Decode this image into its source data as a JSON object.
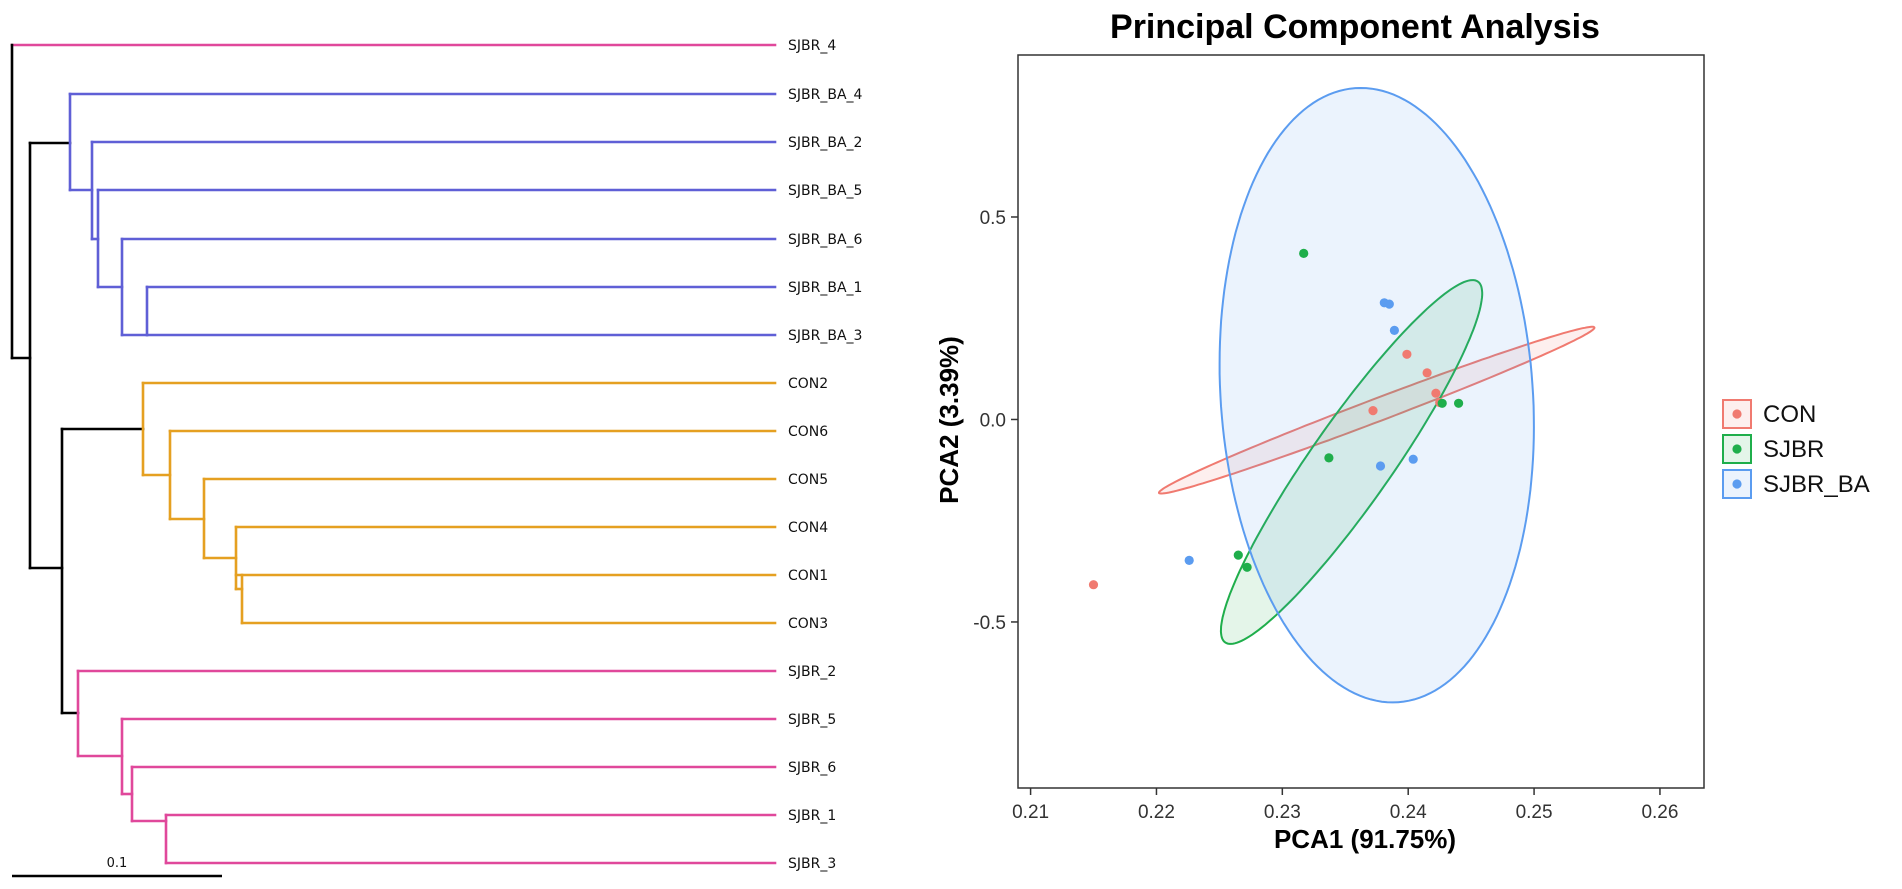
{
  "chart_data": [
    {
      "type": "dendrogram",
      "scale_label": "0.1",
      "colors": {
        "SJBR": "#e0489b",
        "SJBR_BA": "#5f5fd6",
        "CON": "#e5a021",
        "root": "#000000"
      },
      "leaves": [
        {
          "name": "SJBR_4",
          "group": "SJBR"
        },
        {
          "name": "SJBR_BA_4",
          "group": "SJBR_BA"
        },
        {
          "name": "SJBR_BA_2",
          "group": "SJBR_BA"
        },
        {
          "name": "SJBR_BA_5",
          "group": "SJBR_BA"
        },
        {
          "name": "SJBR_BA_6",
          "group": "SJBR_BA"
        },
        {
          "name": "SJBR_BA_1",
          "group": "SJBR_BA"
        },
        {
          "name": "SJBR_BA_3",
          "group": "SJBR_BA"
        },
        {
          "name": "CON2",
          "group": "CON"
        },
        {
          "name": "CON6",
          "group": "CON"
        },
        {
          "name": "CON5",
          "group": "CON"
        },
        {
          "name": "CON4",
          "group": "CON"
        },
        {
          "name": "CON1",
          "group": "CON"
        },
        {
          "name": "CON3",
          "group": "CON"
        },
        {
          "name": "SJBR_2",
          "group": "SJBR"
        },
        {
          "name": "SJBR_5",
          "group": "SJBR"
        },
        {
          "name": "SJBR_6",
          "group": "SJBR"
        },
        {
          "name": "SJBR_1",
          "group": "SJBR"
        },
        {
          "name": "SJBR_3",
          "group": "SJBR"
        }
      ]
    },
    {
      "type": "scatter",
      "title": "Principal Component Analysis",
      "xlabel": "PCA1 (91.75%)",
      "ylabel": "PCA2 (3.39%)",
      "xlim": [
        0.209,
        0.2635
      ],
      "ylim": [
        -0.91,
        0.9
      ],
      "xticks": [
        0.21,
        0.22,
        0.23,
        0.24,
        0.25,
        0.26
      ],
      "xtick_labels": [
        "0.21",
        "0.22",
        "0.23",
        "0.24",
        "0.25",
        "0.26"
      ],
      "yticks": [
        0.5,
        0.0,
        -0.5
      ],
      "ytick_labels": [
        "0.5",
        "0.0",
        "-0.5"
      ],
      "legend_position": "right",
      "series": [
        {
          "name": "CON",
          "color": "#f07a70",
          "points": [
            [
              0.2372,
              0.022
            ],
            [
              0.2399,
              0.161
            ],
            [
              0.2415,
              0.115
            ],
            [
              0.2422,
              0.065
            ],
            [
              0.2425,
              0.042
            ],
            [
              0.215,
              -0.408
            ]
          ],
          "ellipse": {
            "cx": 0.2375,
            "cy": 0.023,
            "rx": 0.0185,
            "ry": 0.028,
            "angle_deg": 20.8
          }
        },
        {
          "name": "SJBR",
          "color": "#1fae4b",
          "points": [
            [
              0.2317,
              0.41
            ],
            [
              0.2427,
              0.04
            ],
            [
              0.244,
              0.04
            ],
            [
              0.2337,
              -0.095
            ],
            [
              0.2265,
              -0.335
            ],
            [
              0.2272,
              -0.365
            ]
          ],
          "ellipse": {
            "cx": 0.2355,
            "cy": -0.105,
            "rx": 0.0175,
            "ry": 0.1,
            "angle_deg": 55
          }
        },
        {
          "name": "SJBR_BA",
          "color": "#5b9cf0",
          "points": [
            [
              0.2381,
              0.288
            ],
            [
              0.2385,
              0.285
            ],
            [
              0.2389,
              0.22
            ],
            [
              0.2378,
              -0.115
            ],
            [
              0.2404,
              -0.098
            ],
            [
              0.2226,
              -0.348
            ]
          ],
          "ellipse": {
            "cx": 0.2375,
            "cy": 0.06,
            "rx": 0.0124,
            "ry": 0.76,
            "angle_deg": 4
          }
        }
      ]
    }
  ]
}
